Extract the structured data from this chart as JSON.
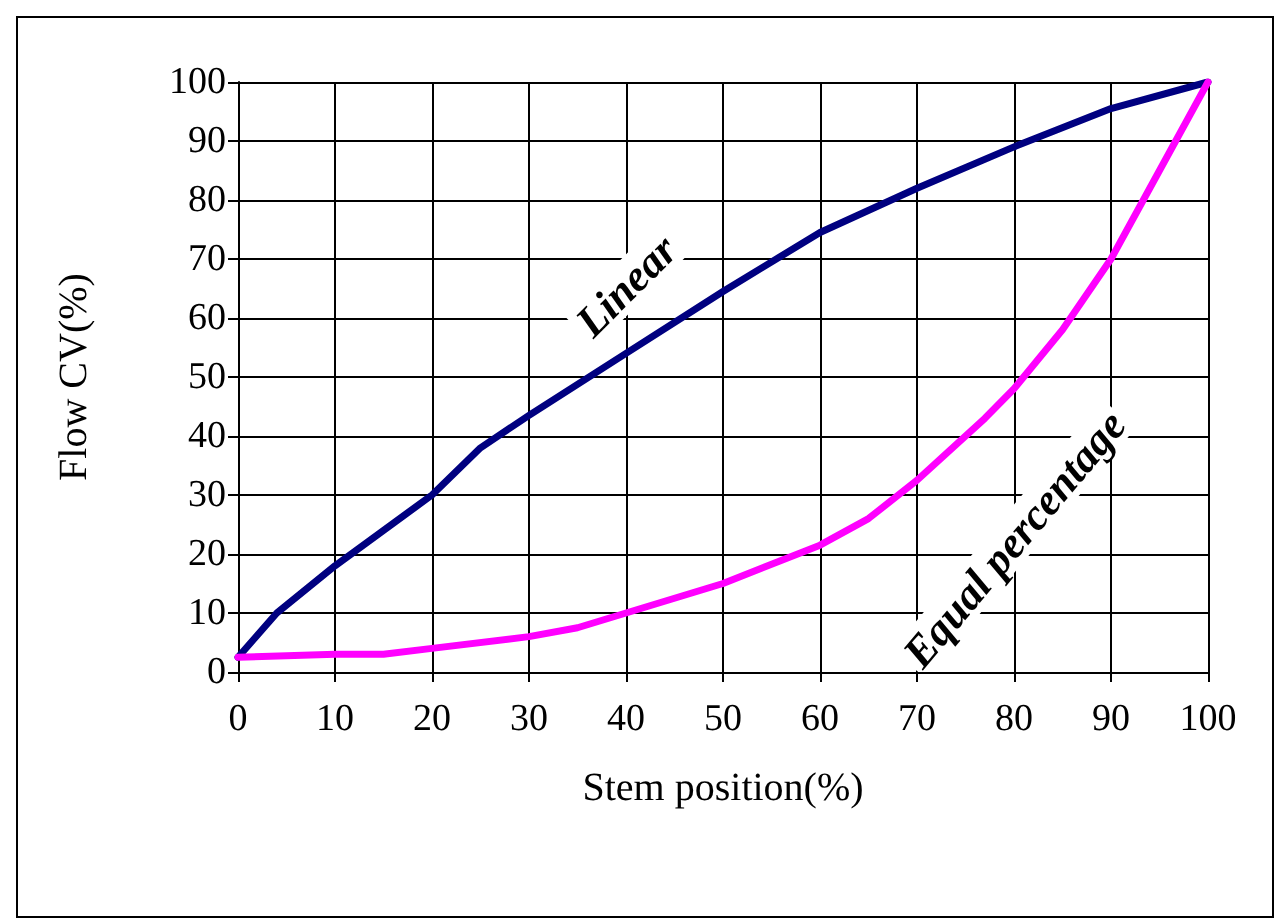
{
  "chart_data": {
    "type": "line",
    "xlabel": "Stem position(%)",
    "ylabel": "Flow CV(%)",
    "xlim": [
      0,
      100
    ],
    "xticks": [
      0,
      10,
      20,
      30,
      40,
      50,
      60,
      70,
      80,
      90,
      100
    ],
    "ylim": [
      0,
      100
    ],
    "yticks": [
      0,
      10,
      20,
      30,
      40,
      50,
      60,
      70,
      80,
      90,
      100
    ],
    "grid": true,
    "legend": false,
    "marker": "none",
    "line_style": "solid",
    "series": [
      {
        "name": "Linear",
        "color": "#000080",
        "x": [
          0,
          4,
          10,
          20,
          25,
          30,
          40,
          50,
          60,
          70,
          80,
          90,
          100
        ],
        "values": [
          2.5,
          10,
          18,
          30,
          38,
          43.5,
          54,
          64.5,
          74.5,
          82,
          89,
          95.5,
          100
        ]
      },
      {
        "name": "Equal percentage",
        "color": "#ff00ff",
        "x": [
          0,
          10,
          15,
          20,
          30,
          35,
          40,
          50,
          60,
          65,
          70,
          77,
          80,
          85,
          90,
          95,
          100
        ],
        "values": [
          2.5,
          3,
          3,
          4,
          6,
          7.5,
          10,
          15,
          21.5,
          26,
          32.5,
          43,
          48,
          58,
          70,
          85,
          100
        ]
      }
    ]
  }
}
